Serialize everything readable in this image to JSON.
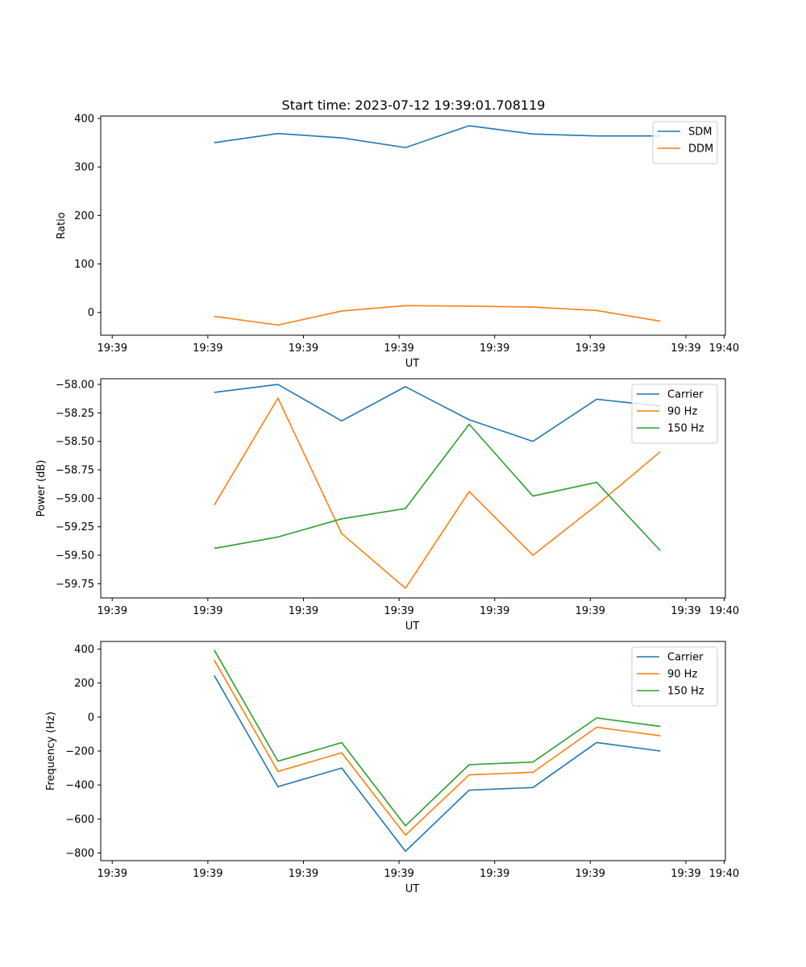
{
  "figure": {
    "title": "Start time: 2023-07-12 19:39:01.708119"
  },
  "colors": {
    "blue": "#1f77b4",
    "orange": "#ff7f0e",
    "green": "#2ca02c"
  },
  "chart_data": [
    {
      "type": "line",
      "title": "Start time: 2023-07-12 19:39:01.708119",
      "xlabel": "UT",
      "ylabel": "Ratio",
      "x": [
        1,
        2,
        3,
        4,
        5,
        6,
        7,
        8
      ],
      "xlim": [
        -0.78,
        9.02
      ],
      "xticks": [
        -0.6,
        0.9,
        2.4,
        3.9,
        5.4,
        6.9,
        8.4,
        9.0
      ],
      "xtick_labels": [
        "19:39",
        "19:39",
        "19:39",
        "19:39",
        "19:39",
        "19:39",
        "19:39",
        "19:40"
      ],
      "ylim": [
        -47,
        405
      ],
      "yticks": [
        0,
        100,
        200,
        300,
        400
      ],
      "ytick_labels": [
        "0",
        "100",
        "200",
        "300",
        "400"
      ],
      "legend": "top-right",
      "series": [
        {
          "name": "SDM",
          "color": "#1f77b4",
          "values": [
            350,
            369,
            360,
            340,
            385,
            368,
            364,
            364
          ]
        },
        {
          "name": "DDM",
          "color": "#ff7f0e",
          "values": [
            -8,
            -26,
            3,
            14,
            13,
            11,
            4,
            -18
          ]
        }
      ]
    },
    {
      "type": "line",
      "xlabel": "UT",
      "ylabel": "Power (dB)",
      "x": [
        1,
        2,
        3,
        4,
        5,
        6,
        7,
        8
      ],
      "xlim": [
        -0.78,
        9.02
      ],
      "xticks": [
        -0.6,
        0.9,
        2.4,
        3.9,
        5.4,
        6.9,
        8.4,
        9.0
      ],
      "xtick_labels": [
        "19:39",
        "19:39",
        "19:39",
        "19:39",
        "19:39",
        "19:39",
        "19:39",
        "19:40"
      ],
      "ylim": [
        -59.875,
        -57.95
      ],
      "yticks": [
        -58.0,
        -58.25,
        -58.5,
        -58.75,
        -59.0,
        -59.25,
        -59.5,
        -59.75
      ],
      "ytick_labels": [
        "−58.00",
        "−58.25",
        "−58.50",
        "−58.75",
        "−59.00",
        "−59.25",
        "−59.50",
        "−59.75"
      ],
      "legend": "top-right",
      "series": [
        {
          "name": "Carrier",
          "color": "#1f77b4",
          "values": [
            -58.07,
            -58.0,
            -58.32,
            -58.02,
            -58.31,
            -58.5,
            -58.13,
            -58.19
          ]
        },
        {
          "name": "90 Hz",
          "color": "#ff7f0e",
          "values": [
            -59.06,
            -58.12,
            -59.31,
            -59.79,
            -58.94,
            -59.5,
            -59.06,
            -58.59
          ]
        },
        {
          "name": "150 Hz",
          "color": "#2ca02c",
          "values": [
            -59.44,
            -59.34,
            -59.18,
            -59.09,
            -58.35,
            -58.98,
            -58.86,
            -59.46
          ]
        }
      ]
    },
    {
      "type": "line",
      "xlabel": "UT",
      "ylabel": "Frequency (Hz)",
      "x": [
        1,
        2,
        3,
        4,
        5,
        6,
        7,
        8
      ],
      "xlim": [
        -0.78,
        9.02
      ],
      "xticks": [
        -0.6,
        0.9,
        2.4,
        3.9,
        5.4,
        6.9,
        8.4,
        9.0
      ],
      "xtick_labels": [
        "19:39",
        "19:39",
        "19:39",
        "19:39",
        "19:39",
        "19:39",
        "19:39",
        "19:40"
      ],
      "ylim": [
        -845,
        445
      ],
      "yticks": [
        400,
        200,
        0,
        -200,
        -400,
        -600,
        -800
      ],
      "ytick_labels": [
        "400",
        "200",
        "0",
        "−200",
        "−400",
        "−600",
        "−800"
      ],
      "legend": "top-right",
      "series": [
        {
          "name": "Carrier",
          "color": "#1f77b4",
          "values": [
            245,
            -410,
            -300,
            -790,
            -430,
            -415,
            -150,
            -200
          ]
        },
        {
          "name": "90 Hz",
          "color": "#ff7f0e",
          "values": [
            335,
            -320,
            -210,
            -695,
            -340,
            -325,
            -60,
            -110
          ]
        },
        {
          "name": "150 Hz",
          "color": "#2ca02c",
          "values": [
            395,
            -260,
            -150,
            -640,
            -280,
            -265,
            -5,
            -55
          ]
        }
      ]
    }
  ]
}
